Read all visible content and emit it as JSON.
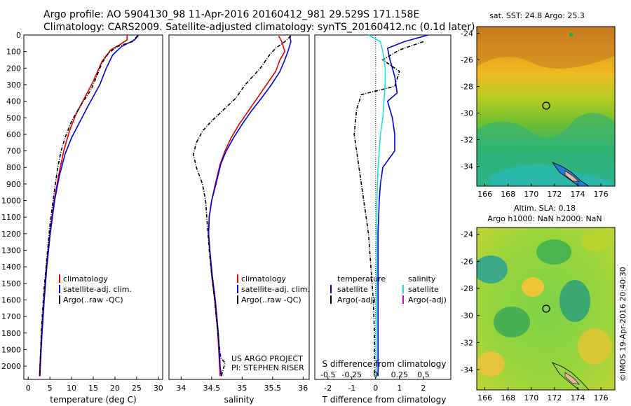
{
  "header": {
    "line1": "Argo profile: AO 5904130_98 11-Apr-2016 20160412_981 29.529S 171.158E",
    "line2": "Climatology: CARS2009. Satellite-adjusted climatology: synTS_20160412.nc (0.1d later)"
  },
  "colors": {
    "red": "#e00000",
    "blue": "#0000dd",
    "black": "#000000",
    "cyan": "#22dddd",
    "magenta": "#dd00dd"
  },
  "credit": "©IMOS 19-Apr-2016 20:40:30",
  "chart_data": [
    {
      "type": "line",
      "id": "temperature",
      "xlabel": "temperature (deg C)",
      "ylim": [
        2080,
        0
      ],
      "xlim": [
        -1,
        31
      ],
      "xticks": [
        "0",
        "5",
        "10",
        "15",
        "20",
        "25",
        "30"
      ],
      "yticks": [
        "0",
        "100",
        "200",
        "300",
        "400",
        "500",
        "600",
        "700",
        "800",
        "900",
        "1000",
        "1100",
        "1200",
        "1300",
        "1400",
        "1500",
        "1600",
        "1700",
        "1800",
        "1900",
        "2000"
      ],
      "legend": [
        "climatology",
        "satellite-adj. clim.",
        "Argo(..raw -QC)"
      ],
      "series": [
        {
          "name": "climatology",
          "color": "red",
          "points": [
            [
              22.8,
              0
            ],
            [
              22.8,
              30
            ],
            [
              21,
              60
            ],
            [
              19,
              90
            ],
            [
              17,
              160
            ],
            [
              15,
              280
            ],
            [
              13,
              380
            ],
            [
              11,
              480
            ],
            [
              9.5,
              580
            ],
            [
              8.2,
              700
            ],
            [
              7,
              850
            ],
            [
              6,
              1000
            ],
            [
              5,
              1200
            ],
            [
              4.2,
              1400
            ],
            [
              3.6,
              1600
            ],
            [
              3.1,
              1800
            ],
            [
              2.7,
              2000
            ],
            [
              2.6,
              2060
            ]
          ]
        },
        {
          "name": "satellite-adj. clim.",
          "color": "blue",
          "points": [
            [
              25.5,
              0
            ],
            [
              24.5,
              30
            ],
            [
              21.5,
              70
            ],
            [
              19.5,
              120
            ],
            [
              18,
              200
            ],
            [
              16.5,
              300
            ],
            [
              14,
              420
            ],
            [
              12,
              520
            ],
            [
              10,
              620
            ],
            [
              8.5,
              720
            ],
            [
              7.2,
              850
            ],
            [
              6.1,
              1000
            ],
            [
              5.1,
              1200
            ],
            [
              4.3,
              1400
            ],
            [
              3.7,
              1600
            ],
            [
              3.2,
              1800
            ],
            [
              2.8,
              2000
            ],
            [
              2.7,
              2060
            ]
          ]
        },
        {
          "name": "Argo(..raw -QC)",
          "color": "black",
          "dashed": true,
          "points": [
            [
              25.2,
              5
            ],
            [
              24,
              40
            ],
            [
              20.5,
              70
            ],
            [
              18.5,
              110
            ],
            [
              17,
              170
            ],
            [
              15.8,
              250
            ],
            [
              14.5,
              330
            ],
            [
              12,
              430
            ],
            [
              10,
              520
            ],
            [
              8.5,
              620
            ],
            [
              7.6,
              700
            ],
            [
              6.8,
              800
            ],
            [
              6,
              950
            ],
            [
              5,
              1150
            ],
            [
              4.3,
              1350
            ],
            [
              3.6,
              1550
            ],
            [
              3.1,
              1750
            ],
            [
              2.8,
              1950
            ],
            [
              2.7,
              2060
            ]
          ]
        }
      ]
    },
    {
      "type": "line",
      "id": "salinity",
      "xlabel": "salinity",
      "ylim": [
        2080,
        0
      ],
      "xlim": [
        33.8,
        36.1
      ],
      "xticks": [
        "34",
        "34.5",
        "35",
        "35.5",
        "36"
      ],
      "legend": [
        "climatology",
        "satellite-adj. clim.",
        "Argo(..raw -QC)"
      ],
      "annotation": [
        "US ARGO PROJECT",
        "PI: STEPHEN RISER"
      ],
      "series": [
        {
          "name": "climatology",
          "color": "red",
          "points": [
            [
              35.6,
              5
            ],
            [
              35.65,
              40
            ],
            [
              35.7,
              100
            ],
            [
              35.62,
              150
            ],
            [
              35.55,
              220
            ],
            [
              35.4,
              300
            ],
            [
              35.25,
              380
            ],
            [
              35.1,
              460
            ],
            [
              34.95,
              540
            ],
            [
              34.82,
              620
            ],
            [
              34.72,
              700
            ],
            [
              34.64,
              780
            ],
            [
              34.56,
              900
            ],
            [
              34.5,
              1000
            ],
            [
              34.46,
              1100
            ],
            [
              34.45,
              1200
            ],
            [
              34.47,
              1300
            ],
            [
              34.5,
              1450
            ],
            [
              34.55,
              1600
            ],
            [
              34.6,
              1800
            ],
            [
              34.63,
              2000
            ],
            [
              34.64,
              2060
            ]
          ]
        },
        {
          "name": "satellite-adj. clim.",
          "color": "blue",
          "points": [
            [
              35.78,
              5
            ],
            [
              35.8,
              40
            ],
            [
              35.75,
              100
            ],
            [
              35.7,
              150
            ],
            [
              35.62,
              220
            ],
            [
              35.48,
              300
            ],
            [
              35.32,
              380
            ],
            [
              35.15,
              460
            ],
            [
              35.0,
              540
            ],
            [
              34.86,
              620
            ],
            [
              34.74,
              700
            ],
            [
              34.65,
              780
            ],
            [
              34.57,
              900
            ],
            [
              34.5,
              1000
            ],
            [
              34.46,
              1100
            ],
            [
              34.45,
              1200
            ],
            [
              34.47,
              1300
            ],
            [
              34.51,
              1450
            ],
            [
              34.56,
              1600
            ],
            [
              34.61,
              1800
            ],
            [
              34.64,
              2000
            ],
            [
              34.66,
              2060
            ]
          ]
        },
        {
          "name": "Argo(..raw -QC)",
          "color": "black",
          "dashed": true,
          "points": [
            [
              35.8,
              5
            ],
            [
              35.7,
              40
            ],
            [
              35.55,
              80
            ],
            [
              35.45,
              120
            ],
            [
              35.3,
              200
            ],
            [
              35.05,
              300
            ],
            [
              34.9,
              380
            ],
            [
              34.7,
              450
            ],
            [
              34.5,
              520
            ],
            [
              34.35,
              580
            ],
            [
              34.25,
              650
            ],
            [
              34.2,
              720
            ],
            [
              34.25,
              800
            ],
            [
              34.3,
              850
            ],
            [
              34.35,
              900
            ],
            [
              34.4,
              1000
            ],
            [
              34.42,
              1100
            ],
            [
              34.44,
              1200
            ],
            [
              34.46,
              1300
            ],
            [
              34.5,
              1450
            ],
            [
              34.55,
              1600
            ],
            [
              34.6,
              1800
            ],
            [
              34.65,
              1950
            ],
            [
              34.72,
              1980
            ],
            [
              34.66,
              2060
            ]
          ]
        }
      ]
    },
    {
      "type": "line",
      "id": "difference",
      "xlabel": "T difference from climatology",
      "xlabel2": "S difference from climatology",
      "ylim": [
        2080,
        0
      ],
      "xlim": [
        -2.55,
        3.15
      ],
      "xticks": [
        "-2",
        "-1",
        "0",
        "1",
        "2"
      ],
      "xticks2": [
        "-0.5",
        "-0.25",
        "0",
        "0.25",
        "0.5"
      ],
      "legend_t": [
        "temperature",
        "satellite",
        "Argo(-adj)"
      ],
      "legend_s": [
        "salinity",
        "satellite",
        "Argo(-adj)"
      ],
      "series": [
        {
          "name": "T satellite",
          "color": "blue",
          "points": [
            [
              2.2,
              0
            ],
            [
              1.2,
              40
            ],
            [
              0.5,
              80
            ],
            [
              0.6,
              150
            ],
            [
              0.8,
              250
            ],
            [
              0.9,
              350
            ],
            [
              0.5,
              400
            ],
            [
              0.7,
              500
            ],
            [
              0.8,
              600
            ],
            [
              0.8,
              700
            ],
            [
              0.3,
              800
            ],
            [
              0.2,
              900
            ],
            [
              0.15,
              1000
            ],
            [
              0.1,
              1200
            ],
            [
              0.1,
              1500
            ],
            [
              0.1,
              1800
            ],
            [
              0.1,
              2060
            ]
          ]
        },
        {
          "name": "T Argo(-adj)",
          "color": "black",
          "dashed": true,
          "points": [
            [
              2.0,
              40
            ],
            [
              1.0,
              90
            ],
            [
              0.3,
              150
            ],
            [
              1.0,
              220
            ],
            [
              0.8,
              310
            ],
            [
              -0.6,
              360
            ],
            [
              -0.8,
              450
            ],
            [
              -0.9,
              600
            ],
            [
              -0.7,
              800
            ],
            [
              -0.5,
              1000
            ],
            [
              -0.3,
              1200
            ],
            [
              -0.2,
              1400
            ],
            [
              -0.1,
              1600
            ],
            [
              -0.05,
              1800
            ],
            [
              -0.05,
              2060
            ]
          ]
        },
        {
          "name": "S satellite",
          "color": "cyan",
          "points": [
            [
              -0.3,
              0
            ],
            [
              0.2,
              40
            ],
            [
              0.3,
              100
            ],
            [
              0.4,
              200
            ],
            [
              0.4,
              300
            ],
            [
              0.35,
              400
            ],
            [
              0.3,
              500
            ],
            [
              0.2,
              600
            ],
            [
              0.1,
              800
            ],
            [
              0.05,
              1000
            ],
            [
              0.05,
              1200
            ],
            [
              0.05,
              1500
            ],
            [
              0.02,
              1800
            ],
            [
              0.02,
              2060
            ]
          ]
        }
      ]
    },
    {
      "type": "heatmap",
      "id": "sst_map",
      "title": "sat. SST: 24.8  Argo: 25.3",
      "xticks": [
        "166",
        "168",
        "170",
        "172",
        "174",
        "176"
      ],
      "yticks": [
        "-24",
        "-26",
        "-28",
        "-30",
        "-32",
        "-34"
      ]
    },
    {
      "type": "heatmap",
      "id": "sla_map",
      "title": "Altim. SLA: 0.18",
      "title2": "Argo h1000: NaN  h2000: NaN",
      "xticks": [
        "166",
        "168",
        "170",
        "172",
        "174",
        "176"
      ],
      "yticks": [
        "-24",
        "-26",
        "-28",
        "-30",
        "-32",
        "-34"
      ]
    }
  ]
}
